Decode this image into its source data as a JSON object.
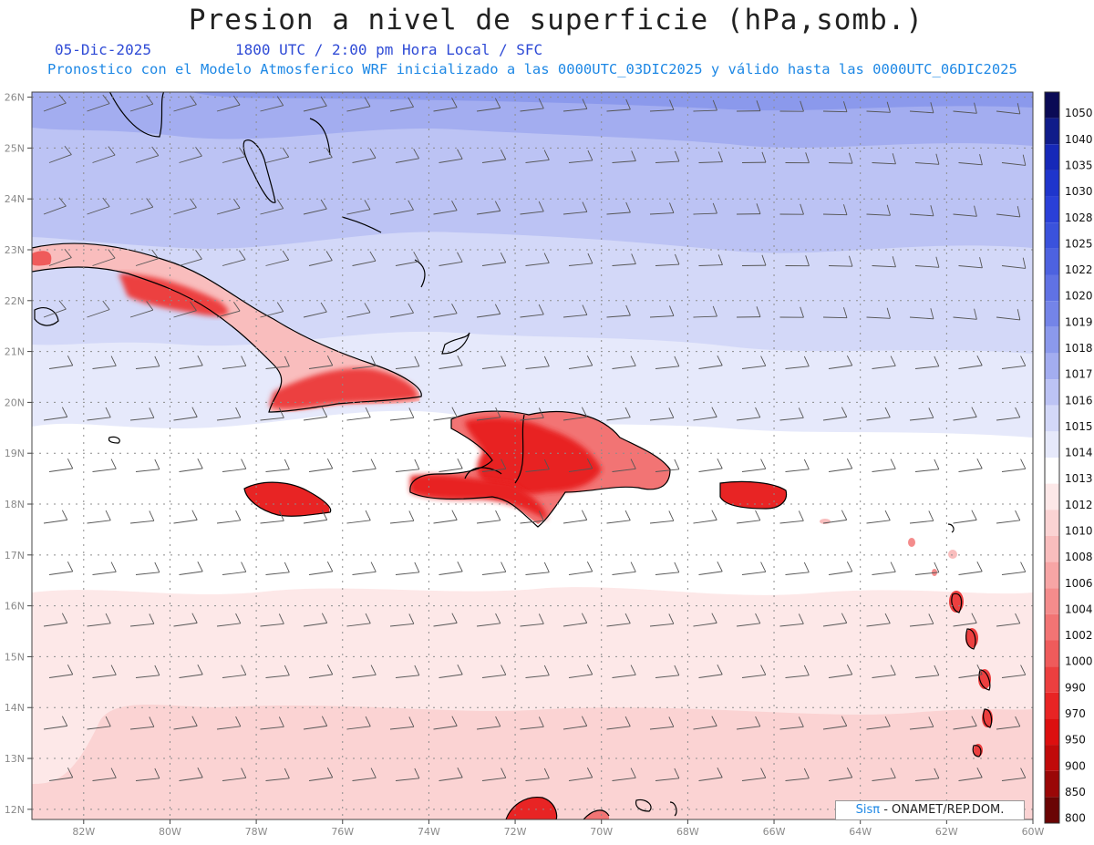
{
  "title": "Presion a nivel de superficie (hPa,somb.)",
  "date": "05-Dic-2025",
  "time": "1800 UTC / 2:00 pm Hora Local / SFC",
  "subtitle": "Pronostico con el Modelo Atmosferico WRF inicializado a las 0000UTC_03DIC2025 y válido hasta las  0000UTC_06DIC2025",
  "lat_labels": [
    "26N",
    "25N",
    "24N",
    "23N",
    "22N",
    "21N",
    "20N",
    "19N",
    "18N",
    "17N",
    "16N",
    "15N",
    "14N",
    "13N",
    "12N"
  ],
  "lon_labels": [
    "82W",
    "80W",
    "78W",
    "76W",
    "74W",
    "72W",
    "70W",
    "68W",
    "66W",
    "64W",
    "62W",
    "60W"
  ],
  "colorbar": {
    "levels": [
      "1050",
      "1040",
      "1035",
      "1030",
      "1028",
      "1025",
      "1022",
      "1020",
      "1019",
      "1018",
      "1017",
      "1016",
      "1015",
      "1014",
      "1013",
      "1012",
      "1010",
      "1008",
      "1006",
      "1004",
      "1002",
      "1000",
      "990",
      "970",
      "950",
      "900",
      "850",
      "800"
    ],
    "colors": [
      "#0a0a55",
      "#101c8a",
      "#1628b8",
      "#1f35cc",
      "#2a40d8",
      "#3a52dc",
      "#4d62e0",
      "#6072e4",
      "#7484e8",
      "#8b99ec",
      "#a3adf0",
      "#bcc3f4",
      "#d3d8f8",
      "#e6e9fb",
      "#ffffff",
      "#fde8e8",
      "#fbd3d3",
      "#f9bdbd",
      "#f7a5a5",
      "#f48c8c",
      "#f27474",
      "#ef5b5b",
      "#ec3f3f",
      "#e82424",
      "#dc0f0f",
      "#c00a0a",
      "#9a0707",
      "#6a0404"
    ]
  },
  "credit": {
    "brand": "Sisπ",
    "text": " - ONAMET/REP.DOM."
  }
}
